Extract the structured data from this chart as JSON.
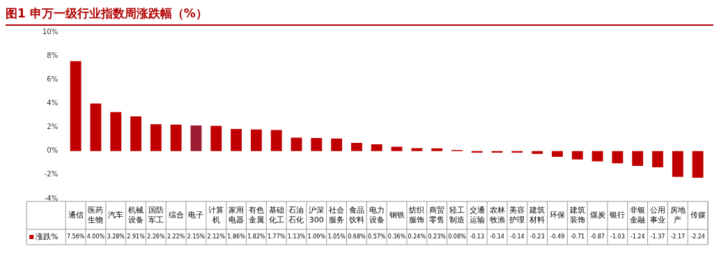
{
  "chart_data": {
    "type": "bar",
    "title": "图1 申万一级行业指数周涨跌幅（%）",
    "categories": [
      "通信",
      "医药生物",
      "汽车",
      "机械设备",
      "国防军工",
      "综合",
      "电子",
      "计算机",
      "家用电器",
      "有色金属",
      "基础化工",
      "石油石化",
      "沪深300",
      "社会服务",
      "食品饮料",
      "电力设备",
      "钢铁",
      "纺织服饰",
      "商贸零售",
      "轻工制造",
      "交通运输",
      "农林牧渔",
      "美容护理",
      "建筑材料",
      "环保",
      "建筑装饰",
      "煤炭",
      "银行",
      "非银金融",
      "公用事业",
      "房地产",
      "传媒"
    ],
    "series": [
      {
        "name": "涨跌%",
        "color": "#c00000",
        "colors": [
          "#c00000",
          "#c00000",
          "#c00000",
          "#c00000",
          "#c00000",
          "#c00000",
          "#9b1b30",
          "#c00000",
          "#c00000",
          "#c00000",
          "#c00000",
          "#c00000",
          "#c00000",
          "#c00000",
          "#c00000",
          "#c00000",
          "#c00000",
          "#c00000",
          "#c00000",
          "#c00000",
          "#c00000",
          "#c00000",
          "#c00000",
          "#c00000",
          "#c00000",
          "#c00000",
          "#c00000",
          "#c00000",
          "#c00000",
          "#c00000",
          "#c00000",
          "#c00000"
        ],
        "values": [
          7.56,
          4.0,
          3.28,
          2.91,
          2.26,
          2.22,
          2.15,
          2.12,
          1.86,
          1.82,
          1.77,
          1.13,
          1.09,
          1.05,
          0.68,
          0.57,
          0.36,
          0.24,
          0.23,
          0.08,
          -0.13,
          -0.14,
          -0.14,
          -0.23,
          -0.49,
          -0.71,
          -0.87,
          -1.03,
          -1.24,
          -1.37,
          -2.17,
          -2.24
        ],
        "value_labels": [
          "7.56%",
          "4.00%",
          "3.28%",
          "2.91%",
          "2.26%",
          "2.22%",
          "2.15%",
          "2.12%",
          "1.86%",
          "1.82%",
          "1.77%",
          "1.13%",
          "1.09%",
          "1.05%",
          "0.68%",
          "0.57%",
          "0.36%",
          "0.24%",
          "0.23%",
          "0.08%",
          "-0.13",
          "-0.14",
          "-0.14",
          "-0.23",
          "-0.49",
          "-0.71",
          "-0.87",
          "-1.03",
          "-1.24",
          "-1.37",
          "-2.17",
          "-2.24"
        ]
      }
    ],
    "ylim": [
      -4,
      10
    ],
    "yticks": [
      {
        "value": -4,
        "label": "-4%"
      },
      {
        "value": -2,
        "label": "-2%"
      },
      {
        "value": 0,
        "label": "0%"
      },
      {
        "value": 2,
        "label": "2%"
      },
      {
        "value": 4,
        "label": "4%"
      },
      {
        "value": 6,
        "label": "6%"
      },
      {
        "value": 8,
        "label": "8%"
      },
      {
        "value": 10,
        "label": "10%"
      }
    ],
    "grid": false,
    "legend": "bottom left"
  }
}
